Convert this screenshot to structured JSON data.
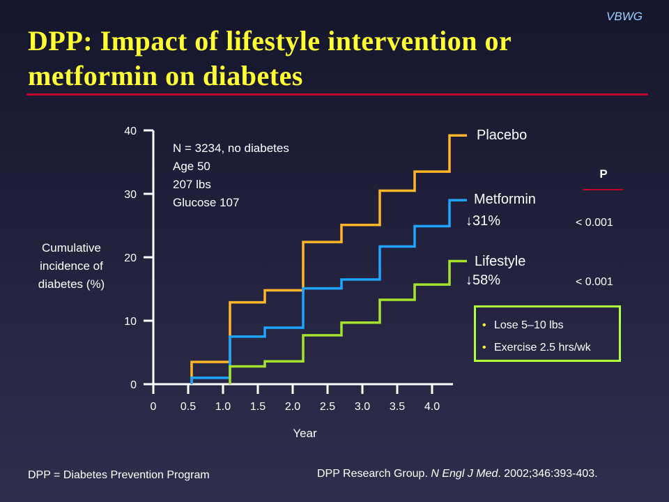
{
  "header": {
    "brand": "VBWG",
    "title": "DPP: Impact of  lifestyle intervention or metformin on diabetes"
  },
  "study_info": [
    "N = 3234, no diabetes",
    "Age 50",
    "207 lbs",
    "Glucose 107"
  ],
  "reductions": {
    "metformin": "↓31%",
    "lifestyle": "↓58%"
  },
  "p_values": {
    "header": "P",
    "metformin": "< 0.001",
    "lifestyle": "< 0.001"
  },
  "lifestyle_box": [
    "Lose 5–10 lbs",
    "Exercise 2.5 hrs/wk"
  ],
  "footer": {
    "definition": "DPP = Diabetes Prevention Program",
    "citation_before": "DPP Research Group. ",
    "citation_journal": "N Engl J Med",
    "citation_after": ". 2002;346:393-403."
  },
  "colors": {
    "title": "#ffff33",
    "rule": "#c0002a",
    "placebo": "#ffb627",
    "metformin": "#1fa4ff",
    "lifestyle": "#a6e22e",
    "box_border": "#b2ff3c",
    "axis": "#ffffff"
  },
  "chart_data": {
    "type": "line",
    "step": true,
    "xlabel": "Year",
    "ylabel": "Cumulative incidence of diabetes (%)",
    "xlim": [
      0,
      4.3
    ],
    "ylim": [
      0,
      40
    ],
    "x_tick_values": [
      0,
      0.5,
      1.0,
      1.5,
      2.0,
      2.5,
      3.0,
      3.5,
      4.0
    ],
    "x_tick_labels": [
      "0",
      "0.5",
      "1.0",
      "1.5",
      "2.0",
      "2.5",
      "3.0",
      "3.5",
      "4.0"
    ],
    "y_tick_values": [
      0,
      10,
      20,
      30,
      40
    ],
    "y_tick_labels": [
      "0",
      "10",
      "20",
      "30",
      "40"
    ],
    "grid": false,
    "series": [
      {
        "name": "Placebo",
        "color": "#ffb627",
        "x": [
          0.55,
          1.1,
          1.6,
          2.15,
          2.7,
          3.25,
          3.75,
          4.25,
          4.5
        ],
        "y": [
          3.5,
          12.9,
          14.8,
          22.4,
          25.1,
          30.5,
          33.5,
          39.2,
          39.2
        ]
      },
      {
        "name": "Metformin",
        "color": "#1fa4ff",
        "x": [
          0.55,
          1.1,
          1.6,
          2.15,
          2.7,
          3.25,
          3.75,
          4.25,
          4.5
        ],
        "y": [
          1.0,
          7.5,
          8.9,
          15.1,
          16.5,
          21.7,
          24.9,
          29.0,
          29.0
        ]
      },
      {
        "name": "Lifestyle",
        "color": "#a6e22e",
        "x": [
          1.1,
          1.6,
          2.15,
          2.7,
          3.25,
          3.75,
          4.25,
          4.5
        ],
        "y": [
          2.8,
          3.6,
          7.7,
          9.7,
          13.3,
          15.7,
          19.4,
          19.4
        ]
      }
    ]
  }
}
